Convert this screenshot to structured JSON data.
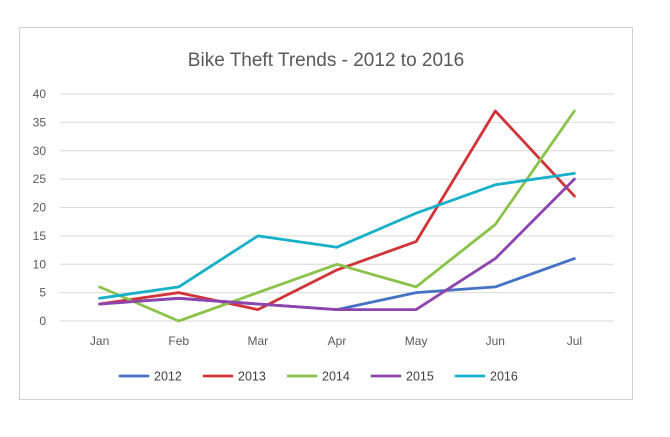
{
  "chart_data": {
    "type": "line",
    "title": "Bike Theft Trends - 2012 to 2016",
    "categories": [
      "Jan",
      "Feb",
      "Mar",
      "Apr",
      "May",
      "Jun",
      "Jul"
    ],
    "ylim": [
      0,
      40
    ],
    "yticks": [
      0,
      5,
      10,
      15,
      20,
      25,
      30,
      35,
      40
    ],
    "grid": true,
    "legend": "bottom",
    "xlabel": "",
    "ylabel": "",
    "series": [
      {
        "name": "2012",
        "color": "#4472C4",
        "values": [
          3,
          4,
          3,
          2,
          5,
          6,
          11
        ]
      },
      {
        "name": "2013",
        "color": "#D13438",
        "values": [
          3,
          5,
          2,
          9,
          14,
          37,
          22
        ]
      },
      {
        "name": "2014",
        "color": "#8BC34A",
        "values": [
          6,
          0,
          5,
          10,
          6,
          17,
          37
        ]
      },
      {
        "name": "2015",
        "color": "#8E44AD",
        "values": [
          3,
          4,
          3,
          2,
          2,
          11,
          25
        ]
      },
      {
        "name": "2016",
        "color": "#17B0C9",
        "values": [
          4,
          6,
          15,
          13,
          19,
          24,
          26
        ]
      }
    ]
  }
}
